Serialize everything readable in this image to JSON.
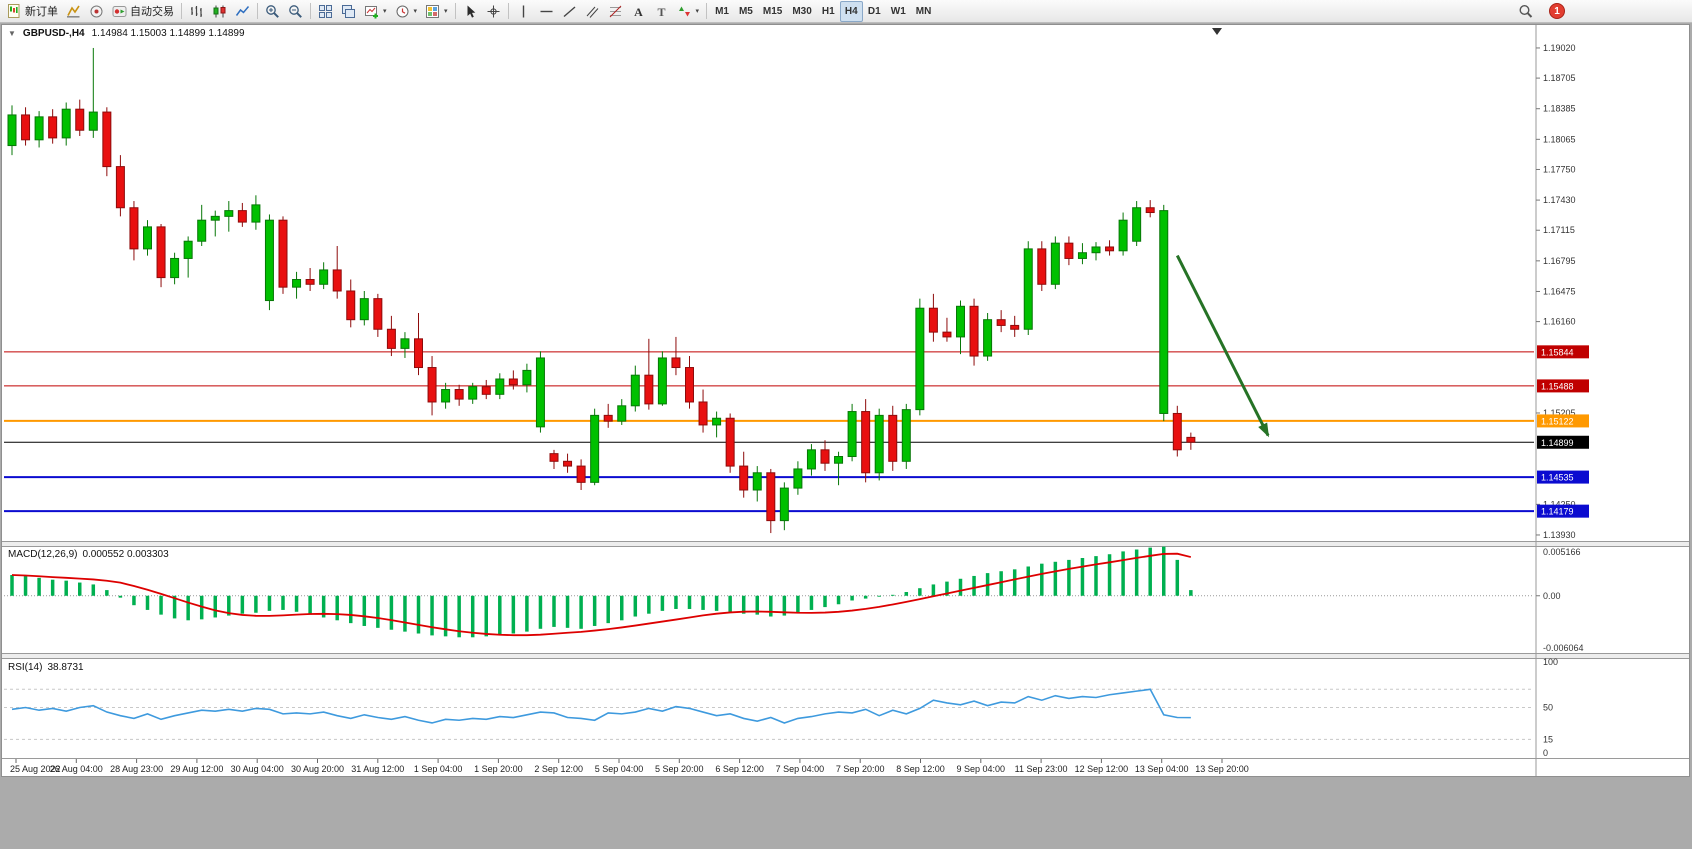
{
  "app": {
    "toolbar": {
      "buttons": [
        {
          "name": "new-order-button",
          "icon": "new-order-icon",
          "label": "新订单"
        },
        {
          "name": "market-watch-button",
          "icon": "market-watch-icon"
        },
        {
          "name": "navigator-button",
          "icon": "navigator-icon"
        },
        {
          "name": "auto-trading-button",
          "icon": "auto-trading-icon",
          "label": "自动交易"
        },
        {
          "sep": true
        },
        {
          "name": "bar-chart-button",
          "icon": "bar-chart-icon"
        },
        {
          "name": "candlestick-chart-button",
          "icon": "candlestick-icon"
        },
        {
          "name": "line-chart-button",
          "icon": "line-chart-icon"
        },
        {
          "sep": true
        },
        {
          "name": "zoom-in-button",
          "icon": "zoom-in-icon"
        },
        {
          "name": "zoom-out-button",
          "icon": "zoom-out-icon"
        },
        {
          "sep": true
        },
        {
          "name": "tile-windows-button",
          "icon": "tile-windows-icon"
        },
        {
          "name": "cascade-windows-button",
          "icon": "cascade-windows-icon"
        },
        {
          "name": "new-chart-button",
          "icon": "new-chart-icon",
          "caret": true
        },
        {
          "name": "profiles-button",
          "icon": "profiles-icon",
          "caret": true
        },
        {
          "name": "templates-button",
          "icon": "templates-icon",
          "caret": true
        },
        {
          "sep": true
        },
        {
          "name": "cursor-button",
          "icon": "cursor-icon"
        },
        {
          "name": "crosshair-button",
          "icon": "crosshair-icon"
        },
        {
          "sep": true
        },
        {
          "name": "vertical-line-button",
          "icon": "vertical-line-icon"
        },
        {
          "name": "horizontal-line-button",
          "icon": "horizontal-line-icon"
        },
        {
          "name": "trendline-button",
          "icon": "trendline-icon"
        },
        {
          "name": "channel-button",
          "icon": "channel-icon"
        },
        {
          "name": "fibonacci-button",
          "icon": "fibonacci-icon"
        },
        {
          "name": "text-button",
          "icon": "text-icon"
        },
        {
          "name": "label-button",
          "icon": "label-icon"
        },
        {
          "name": "arrows-button",
          "icon": "arrows-icon",
          "caret": true
        },
        {
          "sep": true
        }
      ],
      "timeframes": [
        "M1",
        "M5",
        "M15",
        "M30",
        "H1",
        "H4",
        "D1",
        "W1",
        "MN"
      ],
      "active_timeframe": "H4",
      "search_icon": "search-icon",
      "notification_count": "1"
    }
  },
  "chart": {
    "title": "GBPUSD-,H4",
    "ohlc_text": "1.14984 1.15003 1.14899 1.14899",
    "macd_label": "MACD(12,26,9)",
    "macd_values": "0.000552 0.003303",
    "rsi_label": "RSI(14)",
    "rsi_value": "38.8731"
  },
  "chart_data": {
    "type": "candlestick",
    "symbol": "GBPUSD-",
    "timeframe": "H4",
    "colors": {
      "bull": "#00c000",
      "bull_edge": "#077707",
      "bear": "#e81010",
      "bear_edge": "#8e0b0b",
      "macd_hist": "#00b050",
      "macd_signal": "#dd0000",
      "rsi_line": "#3e9ade",
      "arrow": "#267326",
      "level_red": "#c00000",
      "level_orange": "#ff9900",
      "level_blue": "#0b0bd0",
      "level_black": "#000000"
    },
    "price_panel": {
      "axis_labels": [
        "1.19020",
        "1.18705",
        "1.18385",
        "1.18065",
        "1.17750",
        "1.17430",
        "1.17115",
        "1.16795",
        "1.16475",
        "1.16160",
        "1.15205",
        "1.14250",
        "1.13930"
      ],
      "levels": [
        {
          "price": 1.15844,
          "label": "1.15844",
          "color": "#c00000",
          "width": 1
        },
        {
          "price": 1.15488,
          "label": "1.15488",
          "color": "#c00000",
          "width": 1
        },
        {
          "price": 1.15122,
          "label": "1.15122",
          "color": "#ff9900",
          "width": 2
        },
        {
          "price": 1.14899,
          "label": "1.14899",
          "color": "#000000",
          "width": 1
        },
        {
          "price": 1.14535,
          "label": "1.14535",
          "color": "#0b0bd0",
          "width": 2
        },
        {
          "price": 1.14179,
          "label": "1.14179",
          "color": "#0b0bd0",
          "width": 2
        }
      ],
      "annotation_arrow": {
        "from_index": 86,
        "from_price": 1.1685,
        "to_index": 92.7,
        "to_price": 1.1497
      },
      "candles": [
        [
          1.18,
          1.1842,
          1.179,
          1.1832
        ],
        [
          1.1832,
          1.184,
          1.18,
          1.1806
        ],
        [
          1.1806,
          1.1836,
          1.1798,
          1.183
        ],
        [
          1.183,
          1.1838,
          1.1802,
          1.1808
        ],
        [
          1.1808,
          1.1845,
          1.18,
          1.1838
        ],
        [
          1.1838,
          1.1848,
          1.181,
          1.1816
        ],
        [
          1.1816,
          1.1902,
          1.1808,
          1.1835
        ],
        [
          1.1835,
          1.184,
          1.1768,
          1.1778
        ],
        [
          1.1778,
          1.179,
          1.1726,
          1.1735
        ],
        [
          1.1735,
          1.1742,
          1.168,
          1.1692
        ],
        [
          1.1692,
          1.1722,
          1.1685,
          1.1715
        ],
        [
          1.1715,
          1.1718,
          1.1652,
          1.1662
        ],
        [
          1.1662,
          1.1688,
          1.1655,
          1.1682
        ],
        [
          1.1682,
          1.1705,
          1.1662,
          1.17
        ],
        [
          1.17,
          1.1738,
          1.1695,
          1.1722
        ],
        [
          1.1722,
          1.1732,
          1.1705,
          1.1726
        ],
        [
          1.1726,
          1.1742,
          1.171,
          1.1732
        ],
        [
          1.1732,
          1.174,
          1.1715,
          1.172
        ],
        [
          1.172,
          1.1748,
          1.1712,
          1.1738
        ],
        [
          1.1638,
          1.1728,
          1.1628,
          1.1722
        ],
        [
          1.1722,
          1.1726,
          1.1645,
          1.1652
        ],
        [
          1.1652,
          1.1668,
          1.164,
          1.166
        ],
        [
          1.166,
          1.1672,
          1.1648,
          1.1655
        ],
        [
          1.1655,
          1.1678,
          1.165,
          1.167
        ],
        [
          1.167,
          1.1695,
          1.164,
          1.1648
        ],
        [
          1.1648,
          1.166,
          1.161,
          1.1618
        ],
        [
          1.1618,
          1.1648,
          1.1612,
          1.164
        ],
        [
          1.164,
          1.1645,
          1.16,
          1.1608
        ],
        [
          1.1608,
          1.1622,
          1.158,
          1.1588
        ],
        [
          1.1588,
          1.1605,
          1.1578,
          1.1598
        ],
        [
          1.1598,
          1.1625,
          1.156,
          1.1568
        ],
        [
          1.1568,
          1.158,
          1.1518,
          1.1532
        ],
        [
          1.1532,
          1.1552,
          1.1525,
          1.1545
        ],
        [
          1.1545,
          1.155,
          1.1528,
          1.1535
        ],
        [
          1.1535,
          1.1552,
          1.153,
          1.1548
        ],
        [
          1.1548,
          1.1555,
          1.1535,
          1.154
        ],
        [
          1.154,
          1.1562,
          1.1535,
          1.1556
        ],
        [
          1.1556,
          1.1565,
          1.1545,
          1.155
        ],
        [
          1.155,
          1.1572,
          1.1542,
          1.1565
        ],
        [
          1.1506,
          1.1585,
          1.15,
          1.1578
        ],
        [
          1.1478,
          1.1482,
          1.1462,
          1.147
        ],
        [
          1.147,
          1.1478,
          1.1458,
          1.1465
        ],
        [
          1.1465,
          1.1472,
          1.144,
          1.1448
        ],
        [
          1.1448,
          1.1525,
          1.1445,
          1.1518
        ],
        [
          1.1518,
          1.153,
          1.1505,
          1.1512
        ],
        [
          1.1512,
          1.1535,
          1.1508,
          1.1528
        ],
        [
          1.1528,
          1.157,
          1.1522,
          1.156
        ],
        [
          1.156,
          1.1598,
          1.1524,
          1.153
        ],
        [
          1.153,
          1.1585,
          1.1528,
          1.1578
        ],
        [
          1.1578,
          1.16,
          1.156,
          1.1568
        ],
        [
          1.1568,
          1.158,
          1.1525,
          1.1532
        ],
        [
          1.1532,
          1.1545,
          1.15,
          1.1508
        ],
        [
          1.1508,
          1.1522,
          1.1495,
          1.1515
        ],
        [
          1.1515,
          1.152,
          1.1458,
          1.1465
        ],
        [
          1.1465,
          1.148,
          1.1432,
          1.144
        ],
        [
          1.144,
          1.1465,
          1.1428,
          1.1458
        ],
        [
          1.1458,
          1.1462,
          1.1395,
          1.1408
        ],
        [
          1.1408,
          1.1448,
          1.1398,
          1.1442
        ],
        [
          1.1442,
          1.147,
          1.1435,
          1.1462
        ],
        [
          1.1462,
          1.1488,
          1.1455,
          1.1482
        ],
        [
          1.1482,
          1.1492,
          1.146,
          1.1468
        ],
        [
          1.1468,
          1.148,
          1.1445,
          1.1475
        ],
        [
          1.1475,
          1.153,
          1.147,
          1.1522
        ],
        [
          1.1522,
          1.1535,
          1.1448,
          1.1458
        ],
        [
          1.1458,
          1.1525,
          1.145,
          1.1518
        ],
        [
          1.1518,
          1.1528,
          1.146,
          1.147
        ],
        [
          1.147,
          1.153,
          1.1462,
          1.1524
        ],
        [
          1.1524,
          1.164,
          1.1518,
          1.163
        ],
        [
          1.163,
          1.1645,
          1.1595,
          1.1605
        ],
        [
          1.1605,
          1.162,
          1.1595,
          1.16
        ],
        [
          1.16,
          1.1638,
          1.1582,
          1.1632
        ],
        [
          1.1632,
          1.164,
          1.157,
          1.158
        ],
        [
          1.158,
          1.1625,
          1.1575,
          1.1618
        ],
        [
          1.1618,
          1.1628,
          1.1605,
          1.1612
        ],
        [
          1.1612,
          1.1622,
          1.16,
          1.1608
        ],
        [
          1.1608,
          1.17,
          1.1602,
          1.1692
        ],
        [
          1.1692,
          1.17,
          1.1648,
          1.1655
        ],
        [
          1.1655,
          1.1705,
          1.165,
          1.1698
        ],
        [
          1.1698,
          1.1705,
          1.1675,
          1.1682
        ],
        [
          1.1682,
          1.1698,
          1.1676,
          1.1688
        ],
        [
          1.1688,
          1.1699,
          1.168,
          1.1694
        ],
        [
          1.1694,
          1.1701,
          1.1685,
          1.169
        ],
        [
          1.169,
          1.173,
          1.1685,
          1.1722
        ],
        [
          1.17,
          1.1742,
          1.1695,
          1.1735
        ],
        [
          1.1735,
          1.1743,
          1.1725,
          1.173
        ],
        [
          1.152,
          1.1738,
          1.1512,
          1.1732
        ],
        [
          1.152,
          1.1528,
          1.1475,
          1.1482
        ],
        [
          1.1495,
          1.15,
          1.1482,
          1.14899
        ]
      ]
    },
    "macd_panel": {
      "max": 0.005166,
      "min": -0.006064,
      "axis_labels": [
        "0.005166",
        "0.00",
        "-0.006064"
      ],
      "histogram": [
        0.0022,
        0.0021,
        0.0019,
        0.0017,
        0.0016,
        0.0014,
        0.0012,
        0.0006,
        -0.0002,
        -0.001,
        -0.0015,
        -0.002,
        -0.0024,
        -0.0026,
        -0.0025,
        -0.0023,
        -0.0021,
        -0.0019,
        -0.0018,
        -0.0016,
        -0.0015,
        -0.0017,
        -0.002,
        -0.0023,
        -0.0026,
        -0.0029,
        -0.0032,
        -0.0034,
        -0.0036,
        -0.0038,
        -0.004,
        -0.0042,
        -0.0043,
        -0.0044,
        -0.0044,
        -0.0043,
        -0.0042,
        -0.004,
        -0.0038,
        -0.0035,
        -0.0033,
        -0.0034,
        -0.0035,
        -0.0032,
        -0.0029,
        -0.0026,
        -0.0022,
        -0.0019,
        -0.0016,
        -0.0014,
        -0.0014,
        -0.0015,
        -0.0016,
        -0.0017,
        -0.0019,
        -0.002,
        -0.0022,
        -0.0021,
        -0.0018,
        -0.0015,
        -0.0012,
        -0.0009,
        -0.0005,
        -0.0003,
        -0.0001,
        0.0001,
        0.0004,
        0.0008,
        0.0012,
        0.0015,
        0.0018,
        0.0021,
        0.0024,
        0.0026,
        0.0028,
        0.0031,
        0.0034,
        0.0036,
        0.0038,
        0.004,
        0.0042,
        0.0044,
        0.0047,
        0.0049,
        0.0051,
        0.0052,
        0.0038,
        0.0006
      ]
    },
    "rsi_panel": {
      "axis_labels": [
        "100",
        "50",
        "15",
        "0"
      ],
      "levels": [
        70,
        50,
        15
      ],
      "series": [
        48,
        50,
        47,
        49,
        46,
        50,
        52,
        45,
        41,
        38,
        43,
        37,
        41,
        44,
        47,
        46,
        48,
        46,
        49,
        48,
        43,
        44,
        43,
        45,
        41,
        38,
        42,
        39,
        37,
        40,
        36,
        33,
        37,
        36,
        38,
        37,
        40,
        39,
        42,
        45,
        44,
        39,
        38,
        36,
        44,
        43,
        45,
        49,
        46,
        51,
        49,
        45,
        41,
        43,
        38,
        35,
        39,
        33,
        38,
        40,
        43,
        45,
        44,
        48,
        41,
        47,
        43,
        49,
        58,
        55,
        53,
        57,
        52,
        56,
        55,
        62,
        58,
        63,
        60,
        62,
        61,
        64,
        66,
        68,
        70,
        42,
        39,
        38.87
      ]
    },
    "x_axis_labels": [
      "25 Aug 2022",
      "26 Aug 04:00",
      "28 Aug 23:00",
      "29 Aug 12:00",
      "30 Aug 04:00",
      "30 Aug 20:00",
      "31 Aug 12:00",
      "1 Sep 04:00",
      "1 Sep 20:00",
      "2 Sep 12:00",
      "5 Sep 04:00",
      "5 Sep 20:00",
      "6 Sep 12:00",
      "7 Sep 04:00",
      "7 Sep 20:00",
      "8 Sep 12:00",
      "9 Sep 04:00",
      "11 Sep 23:00",
      "12 Sep 12:00",
      "13 Sep 04:00",
      "13 Sep 20:00"
    ]
  }
}
